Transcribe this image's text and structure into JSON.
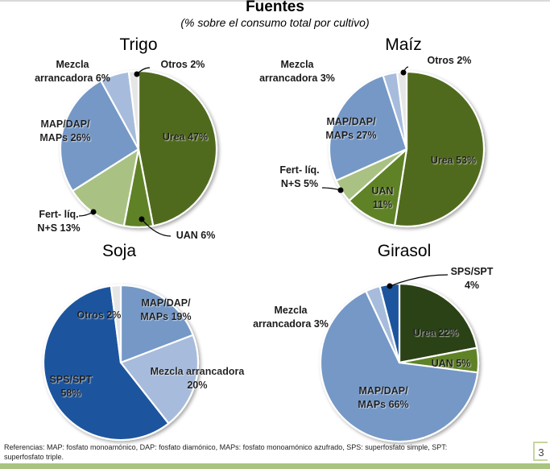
{
  "page": {
    "title": "Fuentes",
    "subtitle": "(% sobre el consumo total por cultivo)",
    "footnote": "Referencias: MAP: fosfato monoamónico, DAP: fosfato diamónico, MAPs: fosfato monoamónico azufrado, SPS: superfosfato simple, SPT: superfosfato triple.",
    "page_number": "3"
  },
  "colors": {
    "urea": "#4f6a1e",
    "uan": "#5f8226",
    "fert_liq": "#a9c283",
    "map": "#7598c6",
    "mezcla": "#a7bcdc",
    "otros": "#e6e6e6",
    "sps": "#1f559e",
    "urea_girasol": "#2a4314"
  },
  "chart_data": [
    {
      "type": "pie",
      "title": "Trigo",
      "unit": "%",
      "slices": [
        {
          "name": "Urea",
          "value": 47,
          "label_lines": [
            "Urea 47%"
          ],
          "color_key": "urea"
        },
        {
          "name": "UAN",
          "value": 6,
          "label_lines": [
            "UAN 6%"
          ],
          "color_key": "uan"
        },
        {
          "name": "Fert- líq. N+S",
          "value": 13,
          "label_lines": [
            "Fert- líq.",
            "N+S 13%"
          ],
          "color_key": "fert_liq"
        },
        {
          "name": "MAP/DAP/MAPs",
          "value": 26,
          "label_lines": [
            "MAP/DAP/",
            "MAPs 26%"
          ],
          "color_key": "map"
        },
        {
          "name": "Mezcla arrancadora",
          "value": 6,
          "label_lines": [
            "Mezcla",
            "arrancadora 6%"
          ],
          "color_key": "mezcla"
        },
        {
          "name": "Otros",
          "value": 2,
          "label_lines": [
            "Otros 2%"
          ],
          "color_key": "otros"
        }
      ]
    },
    {
      "type": "pie",
      "title": "Maíz",
      "unit": "%",
      "slices": [
        {
          "name": "Urea",
          "value": 53,
          "label_lines": [
            "Urea 53%"
          ],
          "color_key": "urea"
        },
        {
          "name": "UAN",
          "value": 11,
          "label_lines": [
            "UAN",
            "11%"
          ],
          "color_key": "uan"
        },
        {
          "name": "Fert- líq. N+S",
          "value": 5,
          "label_lines": [
            "Fert- líq.",
            "N+S 5%"
          ],
          "color_key": "fert_liq"
        },
        {
          "name": "MAP/DAP/MAPs",
          "value": 27,
          "label_lines": [
            "MAP/DAP/",
            "MAPs 27%"
          ],
          "color_key": "map"
        },
        {
          "name": "Mezcla arrancadora",
          "value": 3,
          "label_lines": [
            "Mezcla",
            "arrancadora 3%"
          ],
          "color_key": "mezcla"
        },
        {
          "name": "Otros",
          "value": 2,
          "label_lines": [
            "Otros 2%"
          ],
          "color_key": "otros"
        }
      ]
    },
    {
      "type": "pie",
      "title": "Soja",
      "unit": "%",
      "slices": [
        {
          "name": "MAP/DAP/MAPs",
          "value": 19,
          "label_lines": [
            "MAP/DAP/",
            "MAPs 19%"
          ],
          "color_key": "map"
        },
        {
          "name": "Mezcla arrancadora",
          "value": 20,
          "label_lines": [
            "Mezcla arrancadora",
            "20%"
          ],
          "color_key": "mezcla"
        },
        {
          "name": "SPS/SPT",
          "value": 58,
          "label_lines": [
            "SPS/SPT",
            "58%"
          ],
          "color_key": "sps"
        },
        {
          "name": "Otros",
          "value": 2,
          "label_lines": [
            "Otros 2%"
          ],
          "color_key": "otros"
        }
      ]
    },
    {
      "type": "pie",
      "title": "Girasol",
      "unit": "%",
      "slices": [
        {
          "name": "Urea",
          "value": 22,
          "label_lines": [
            "Urea 22%"
          ],
          "color_key": "urea_girasol"
        },
        {
          "name": "UAN",
          "value": 5,
          "label_lines": [
            "UAN 5%"
          ],
          "color_key": "uan"
        },
        {
          "name": "MAP/DAP/MAPs",
          "value": 66,
          "label_lines": [
            "MAP/DAP/",
            "MAPs 66%"
          ],
          "color_key": "map"
        },
        {
          "name": "Mezcla arrancadora",
          "value": 3,
          "label_lines": [
            "Mezcla",
            "arrancadora 3%"
          ],
          "color_key": "mezcla"
        },
        {
          "name": "SPS/SPT",
          "value": 4,
          "label_lines": [
            "SPS/SPT",
            "4%"
          ],
          "color_key": "sps"
        }
      ]
    }
  ]
}
